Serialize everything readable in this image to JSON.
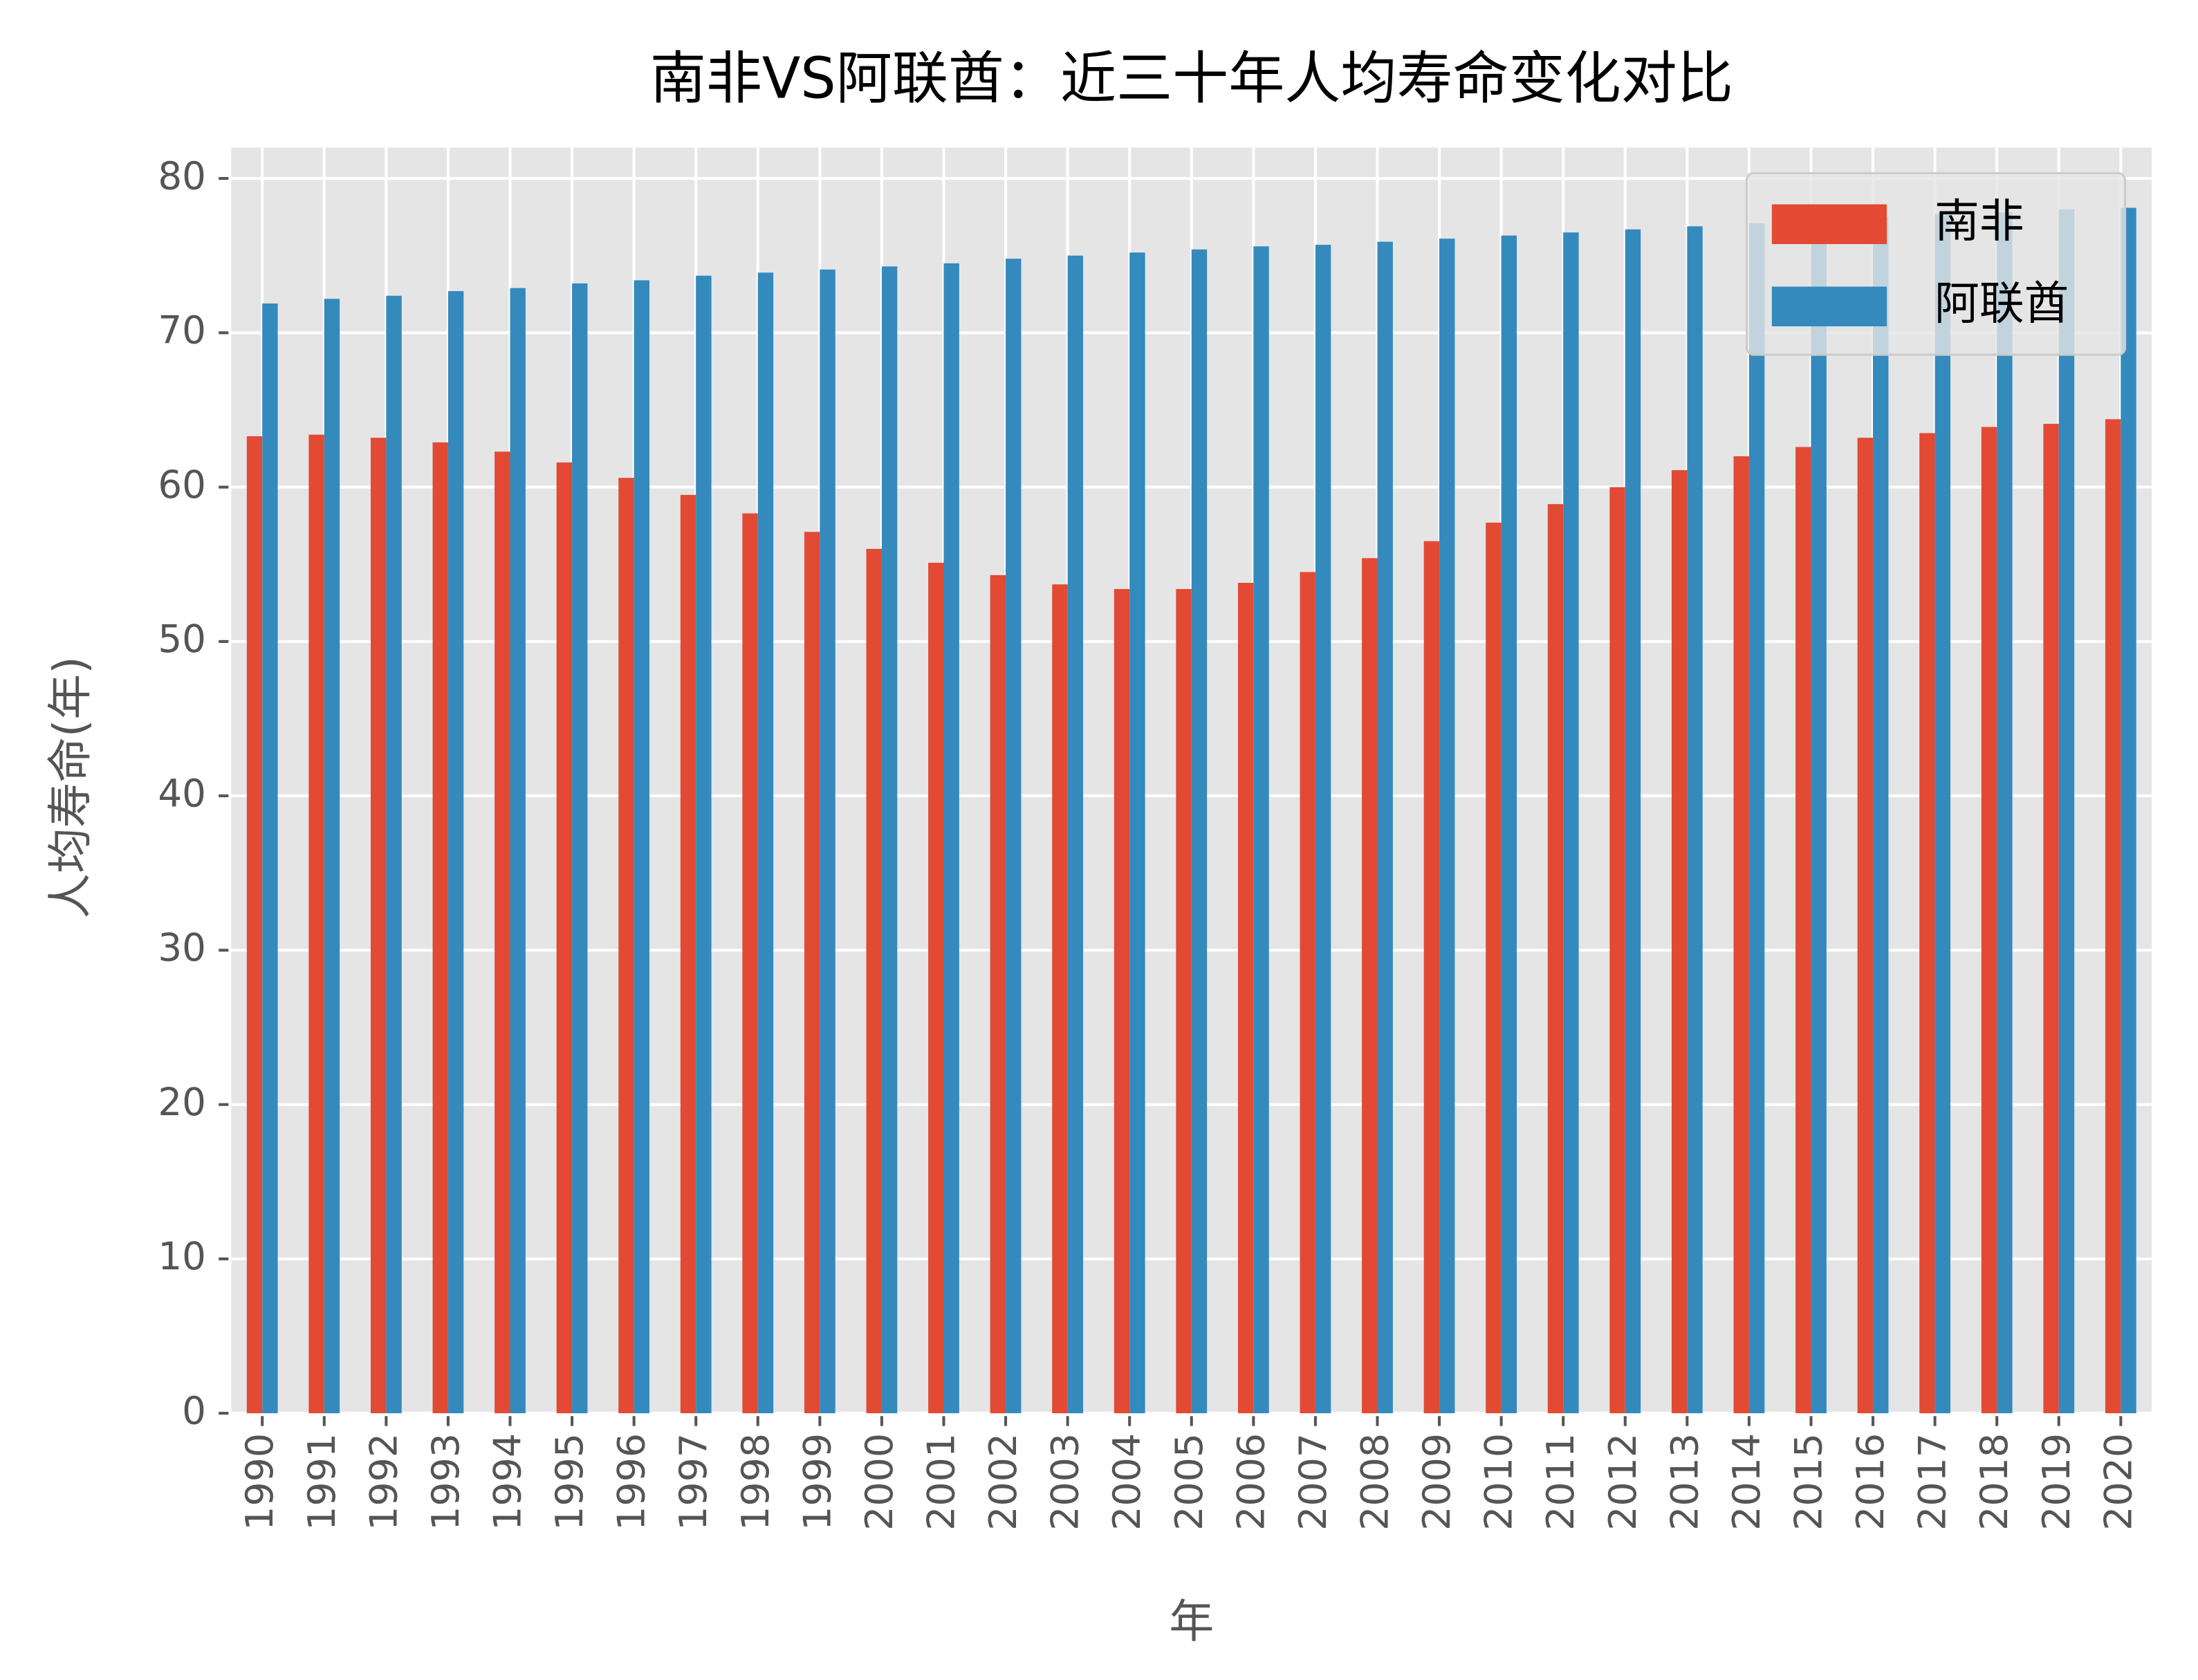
{
  "chart_data": {
    "type": "bar",
    "title": "南非VS阿联酋：近三十年人均寿命变化对比",
    "xlabel": "年",
    "ylabel": "人均寿命(年)",
    "categories": [
      "1990",
      "1991",
      "1992",
      "1993",
      "1994",
      "1995",
      "1996",
      "1997",
      "1998",
      "1999",
      "2000",
      "2001",
      "2002",
      "2003",
      "2004",
      "2005",
      "2006",
      "2007",
      "2008",
      "2009",
      "2010",
      "2011",
      "2012",
      "2013",
      "2014",
      "2015",
      "2016",
      "2017",
      "2018",
      "2019",
      "2020"
    ],
    "series": [
      {
        "name": "南非",
        "color": "#e24a33",
        "values": [
          63.3,
          63.4,
          63.2,
          62.9,
          62.3,
          61.6,
          60.6,
          59.5,
          58.3,
          57.1,
          56.0,
          55.1,
          54.3,
          53.7,
          53.4,
          53.4,
          53.8,
          54.5,
          55.4,
          56.5,
          57.7,
          58.9,
          60.0,
          61.1,
          62.0,
          62.6,
          63.2,
          63.5,
          63.9,
          64.1,
          64.4
        ]
      },
      {
        "name": "阿联酋",
        "color": "#348abd",
        "values": [
          71.9,
          72.2,
          72.4,
          72.7,
          72.9,
          73.2,
          73.4,
          73.7,
          73.9,
          74.1,
          74.3,
          74.5,
          74.8,
          75.0,
          75.2,
          75.4,
          75.6,
          75.7,
          75.9,
          76.1,
          76.3,
          76.5,
          76.7,
          76.9,
          77.1,
          77.3,
          77.5,
          77.7,
          77.8,
          78.0,
          78.1
        ]
      }
    ],
    "ylim": [
      0,
      82
    ],
    "yticks": [
      0,
      10,
      20,
      30,
      40,
      50,
      60,
      70,
      80
    ],
    "grid": true,
    "legend": "upper right"
  }
}
